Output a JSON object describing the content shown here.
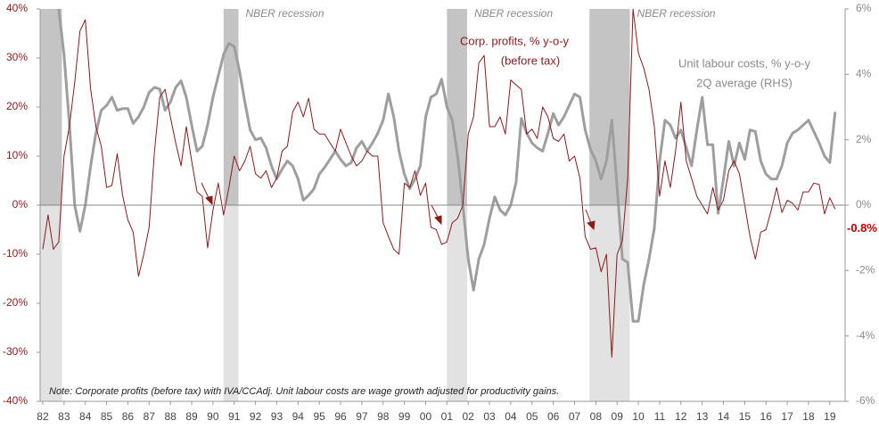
{
  "chart_data": {
    "type": "line",
    "x": [
      1982,
      1982.25,
      1982.5,
      1982.75,
      1983,
      1983.25,
      1983.5,
      1983.75,
      1984,
      1984.25,
      1984.5,
      1984.75,
      1985,
      1985.25,
      1985.5,
      1985.75,
      1986,
      1986.25,
      1986.5,
      1986.75,
      1987,
      1987.25,
      1987.5,
      1987.75,
      1988,
      1988.25,
      1988.5,
      1988.75,
      1989,
      1989.25,
      1989.5,
      1989.75,
      1990,
      1990.25,
      1990.5,
      1990.75,
      1991,
      1991.25,
      1991.5,
      1991.75,
      1992,
      1992.25,
      1992.5,
      1992.75,
      1993,
      1993.25,
      1993.5,
      1993.75,
      1994,
      1994.25,
      1994.5,
      1994.75,
      1995,
      1995.25,
      1995.5,
      1995.75,
      1996,
      1996.25,
      1996.5,
      1996.75,
      1997,
      1997.25,
      1997.5,
      1997.75,
      1998,
      1998.25,
      1998.5,
      1998.75,
      1999,
      1999.25,
      1999.5,
      1999.75,
      2000,
      2000.25,
      2000.5,
      2000.75,
      2001,
      2001.25,
      2001.5,
      2001.75,
      2002,
      2002.25,
      2002.5,
      2002.75,
      2003,
      2003.25,
      2003.5,
      2003.75,
      2004,
      2004.25,
      2004.5,
      2004.75,
      2005,
      2005.25,
      2005.5,
      2005.75,
      2006,
      2006.25,
      2006.5,
      2006.75,
      2007,
      2007.25,
      2007.5,
      2007.75,
      2008,
      2008.25,
      2008.5,
      2008.75,
      2009,
      2009.25,
      2009.5,
      2009.75,
      2010,
      2010.25,
      2010.5,
      2010.75,
      2011,
      2011.25,
      2011.5,
      2011.75,
      2012,
      2012.25,
      2012.5,
      2012.75,
      2013,
      2013.25,
      2013.5,
      2013.75,
      2014,
      2014.25,
      2014.5,
      2014.75,
      2015,
      2015.25,
      2015.5,
      2015.75,
      2016,
      2016.25,
      2016.5,
      2016.75,
      2017,
      2017.25,
      2017.5,
      2017.75,
      2018,
      2018.25,
      2018.5,
      2018.75,
      2019,
      2019.25
    ],
    "series": [
      {
        "legend": [
          "Corp. profits, % y-o-y",
          "(before tax)"
        ],
        "color": "#8b1a1a",
        "axis": "y",
        "values": [
          -9,
          -2,
          -9,
          -7.5,
          10,
          16,
          25,
          35.5,
          37.8,
          23.6,
          16,
          12,
          3.6,
          4,
          10.5,
          2,
          -3,
          -5.5,
          -14.5,
          -10,
          -4.5,
          11,
          22,
          23.6,
          18,
          12.7,
          8,
          16,
          9,
          2.7,
          1.8,
          -8.7,
          -1,
          4.5,
          -2,
          3.6,
          10,
          7,
          9,
          12,
          6.4,
          5.5,
          7,
          3.6,
          5.5,
          11,
          12,
          19,
          21,
          18,
          21.8,
          15.5,
          14.5,
          14.5,
          12.7,
          11,
          15.5,
          12.7,
          10,
          8,
          9,
          11,
          10,
          10,
          -3.6,
          -6.4,
          -9,
          -10,
          4.5,
          3.6,
          7,
          2,
          4.5,
          -4.5,
          -5,
          -8,
          -7.5,
          -3.6,
          -2.7,
          0,
          14.5,
          18,
          29,
          30.5,
          16,
          16,
          18,
          14.5,
          25.5,
          24.5,
          23.6,
          14.5,
          15.5,
          13.6,
          20,
          18,
          13.6,
          13,
          14.5,
          9,
          10,
          5.5,
          -6.4,
          -9,
          -8.7,
          -13.6,
          -10,
          -31,
          -10,
          -7.3,
          5.5,
          40,
          31,
          28,
          23.6,
          16,
          1.8,
          9,
          3.6,
          11,
          21,
          9,
          5.5,
          1.8,
          0,
          -1.8,
          3.6,
          -1,
          1,
          7,
          9,
          6.4,
          0,
          -6.4,
          -11,
          -5.5,
          -5,
          -1,
          3.6,
          -1.5,
          1,
          0.4,
          -1,
          2.7,
          2.7,
          4.5,
          4.2,
          -1.8,
          1.5,
          -0.8
        ],
        "end_label": "-0.8%"
      },
      {
        "legend": [
          "Unit labour costs, % y-o-y",
          "2Q average (RHS)"
        ],
        "color": "#9e9e9e",
        "axis": "y2",
        "values": [
          null,
          null,
          null,
          6,
          4.6,
          2.5,
          0,
          -0.8,
          0,
          1.2,
          2.2,
          2.9,
          3.05,
          3.3,
          2.9,
          2.95,
          2.95,
          2.5,
          2.7,
          3.0,
          3.45,
          3.6,
          3.55,
          2.9,
          3.15,
          3.6,
          3.8,
          3.3,
          2.45,
          1.65,
          1.8,
          2.45,
          3.3,
          3.95,
          4.6,
          4.95,
          4.85,
          4.1,
          3.15,
          2.3,
          2.0,
          2.05,
          1.75,
          1.2,
          0.8,
          1.1,
          1.35,
          1.2,
          0.8,
          0.15,
          0.3,
          0.5,
          0.95,
          1.15,
          1.4,
          1.65,
          1.4,
          1.2,
          1.3,
          1.75,
          1.95,
          1.65,
          1.9,
          2.2,
          2.6,
          3.4,
          2.7,
          1.65,
          0.95,
          0.5,
          0.8,
          1.2,
          2.7,
          3.3,
          3.4,
          3.85,
          3.0,
          2.6,
          1.5,
          0,
          -1.65,
          -2.6,
          -1.65,
          -1.2,
          -0.4,
          0.25,
          -0.15,
          -0.3,
          0,
          0.7,
          2.65,
          2.2,
          1.9,
          1.75,
          1.65,
          2.2,
          2.8,
          2.45,
          2.7,
          3.05,
          3.4,
          3.3,
          2.3,
          1.7,
          1.35,
          0.8,
          1.35,
          2.6,
          0.55,
          -1.65,
          -1.75,
          -3.55,
          -3.55,
          -2.45,
          -1.65,
          -0.7,
          1.35,
          2.6,
          2.45,
          2.05,
          2.3,
          1.75,
          1.2,
          2.3,
          3.3,
          1.85,
          1.85,
          -0.25,
          0.8,
          1.95,
          1.2,
          1.9,
          1.4,
          2.3,
          2.25,
          1.35,
          0.95,
          0.8,
          0.8,
          1.2,
          1.9,
          2.2,
          2.3,
          2.45,
          2.6,
          2.25,
          1.9,
          1.5,
          1.3,
          2.85
        ]
      }
    ],
    "recessions": [
      {
        "start": 1981.5,
        "end": 1982.9
      },
      {
        "start": 1990.5,
        "end": 1991.2,
        "label": "NBER recession"
      },
      {
        "start": 2001.0,
        "end": 2001.95,
        "label": "NBER recession"
      },
      {
        "start": 2007.7,
        "end": 2009.6,
        "label": "NBER recession"
      }
    ],
    "note": "Note: Corporate profits (before tax) with IVA/CCAdj. Unit labour costs are wage growth adjusted for productivity gains.",
    "xlim": [
      1981.875,
      2019.72
    ],
    "xticks": [
      {
        "value": 1982,
        "label": "82"
      },
      {
        "value": 1983,
        "label": "83"
      },
      {
        "value": 1984,
        "label": "84"
      },
      {
        "value": 1985,
        "label": "85"
      },
      {
        "value": 1986,
        "label": "86"
      },
      {
        "value": 1987,
        "label": "87"
      },
      {
        "value": 1988,
        "label": "88"
      },
      {
        "value": 1989,
        "label": "89"
      },
      {
        "value": 1990,
        "label": "90"
      },
      {
        "value": 1991,
        "label": "91"
      },
      {
        "value": 1992,
        "label": "92"
      },
      {
        "value": 1993,
        "label": "93"
      },
      {
        "value": 1994,
        "label": "94"
      },
      {
        "value": 1995,
        "label": "95"
      },
      {
        "value": 1996,
        "label": "96"
      },
      {
        "value": 1997,
        "label": "97"
      },
      {
        "value": 1998,
        "label": "98"
      },
      {
        "value": 1999,
        "label": "99"
      },
      {
        "value": 2000,
        "label": "00"
      },
      {
        "value": 2001,
        "label": "01"
      },
      {
        "value": 2002,
        "label": "02"
      },
      {
        "value": 2003,
        "label": "03"
      },
      {
        "value": 2004,
        "label": "04"
      },
      {
        "value": 2005,
        "label": "05"
      },
      {
        "value": 2006,
        "label": "06"
      },
      {
        "value": 2007,
        "label": "07"
      },
      {
        "value": 2008,
        "label": "08"
      },
      {
        "value": 2009,
        "label": "09"
      },
      {
        "value": 2010,
        "label": "10"
      },
      {
        "value": 2011,
        "label": "11"
      },
      {
        "value": 2012,
        "label": "12"
      },
      {
        "value": 2013,
        "label": "13"
      },
      {
        "value": 2014,
        "label": "14"
      },
      {
        "value": 2015,
        "label": "15"
      },
      {
        "value": 2016,
        "label": "16"
      },
      {
        "value": 2017,
        "label": "17"
      },
      {
        "value": 2018,
        "label": "18"
      },
      {
        "value": 2019,
        "label": "19"
      }
    ],
    "ylim": [
      -40,
      40
    ],
    "yticks": [
      {
        "value": -40,
        "label": "-40%"
      },
      {
        "value": -30,
        "label": "-30%"
      },
      {
        "value": -20,
        "label": "-20%"
      },
      {
        "value": -10,
        "label": "-10%"
      },
      {
        "value": 0,
        "label": "0%"
      },
      {
        "value": 10,
        "label": "10%"
      },
      {
        "value": 20,
        "label": "20%"
      },
      {
        "value": 30,
        "label": "30%"
      },
      {
        "value": 40,
        "label": "40%"
      }
    ],
    "y2lim": [
      -6,
      6
    ],
    "y2ticks": [
      {
        "value": -6,
        "label": "-6%"
      },
      {
        "value": -4,
        "label": "-4%"
      },
      {
        "value": -2,
        "label": "-2%"
      },
      {
        "value": 0,
        "label": "0%"
      },
      {
        "value": 2,
        "label": "2%"
      },
      {
        "value": 4,
        "label": "4%"
      },
      {
        "value": 6,
        "label": "6%"
      }
    ]
  }
}
